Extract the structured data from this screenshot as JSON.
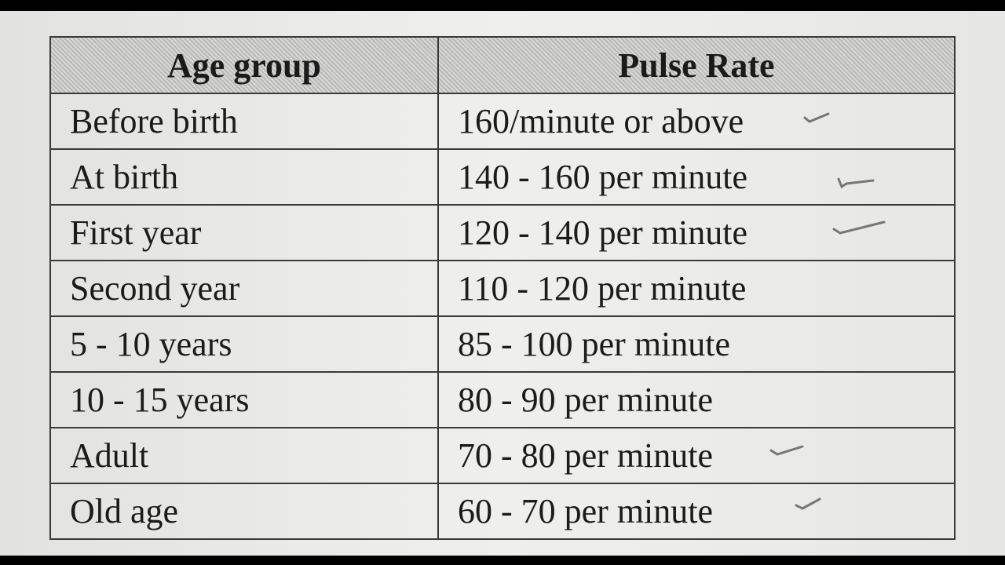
{
  "table": {
    "header": [
      "Age group",
      "Pulse Rate"
    ],
    "rows": [
      [
        "Before birth",
        "160/minute or above"
      ],
      [
        "At birth",
        "140 - 160 per minute"
      ],
      [
        "First year",
        "120 - 140 per minute"
      ],
      [
        "Second year",
        "110 - 120 per minute"
      ],
      [
        "5 - 10 years",
        "85 - 100 per minute"
      ],
      [
        "10 - 15 years",
        "80 - 90 per minute"
      ],
      [
        "Adult",
        "70 - 80 per minute"
      ],
      [
        "Old age",
        "60 - 70 per minute"
      ]
    ]
  }
}
